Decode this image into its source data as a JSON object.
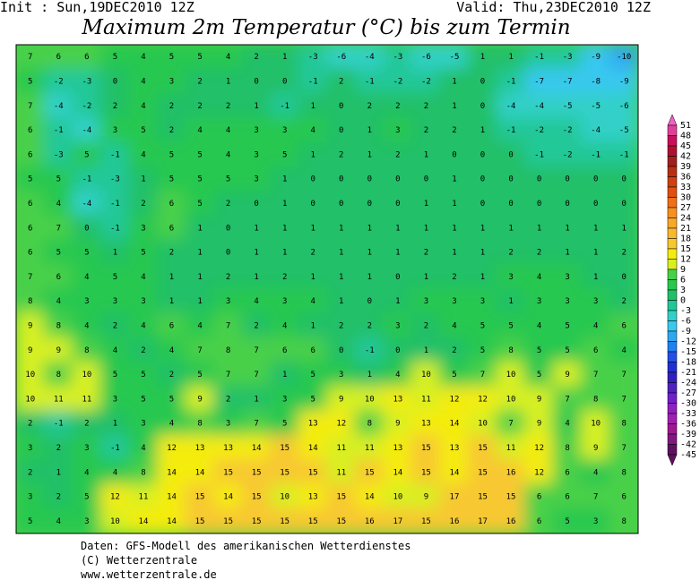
{
  "header": {
    "init": "Init : Sun,19DEC2010 12Z",
    "valid": "Valid: Thu,23DEC2010 12Z",
    "title": "Maximum 2m Temperatur (°C) bis zum Termin"
  },
  "map": {
    "grid": [
      [
        7,
        6,
        6,
        5,
        4,
        5,
        5,
        4,
        2,
        1,
        -3,
        -6,
        -4,
        -3,
        -6,
        -5,
        1,
        1,
        -1,
        -3,
        -9,
        -10
      ],
      [
        5,
        -2,
        -3,
        0,
        4,
        3,
        2,
        1,
        0,
        0,
        -1,
        2,
        -1,
        -2,
        -2,
        1,
        0,
        -1,
        -7,
        -7,
        -8,
        -9
      ],
      [
        7,
        -4,
        -2,
        2,
        4,
        2,
        2,
        2,
        1,
        -1,
        1,
        0,
        2,
        2,
        2,
        1,
        0,
        -4,
        -4,
        -5,
        -5,
        -6
      ],
      [
        6,
        -1,
        -4,
        3,
        5,
        2,
        4,
        4,
        3,
        3,
        4,
        0,
        1,
        3,
        2,
        2,
        1,
        -1,
        -2,
        -2,
        -4,
        -5
      ],
      [
        6,
        -3,
        5,
        -1,
        4,
        5,
        5,
        4,
        3,
        5,
        1,
        2,
        1,
        2,
        1,
        0,
        0,
        0,
        -1,
        -2,
        -1,
        -1
      ],
      [
        5,
        5,
        -1,
        -3,
        1,
        5,
        5,
        5,
        3,
        1,
        0,
        0,
        0,
        0,
        0,
        1,
        0,
        0,
        0,
        0,
        0,
        0
      ],
      [
        6,
        4,
        -4,
        -1,
        2,
        6,
        5,
        2,
        0,
        1,
        0,
        0,
        0,
        0,
        1,
        1,
        0,
        0,
        0,
        0,
        0,
        0
      ],
      [
        6,
        7,
        0,
        -1,
        3,
        6,
        1,
        0,
        1,
        1,
        1,
        1,
        1,
        1,
        1,
        1,
        1,
        1,
        1,
        1,
        1,
        1
      ],
      [
        6,
        5,
        5,
        1,
        5,
        2,
        1,
        0,
        1,
        1,
        2,
        1,
        1,
        1,
        2,
        1,
        1,
        2,
        2,
        1,
        1,
        2
      ],
      [
        7,
        6,
        4,
        5,
        4,
        1,
        1,
        2,
        1,
        2,
        1,
        1,
        1,
        0,
        1,
        2,
        1,
        3,
        4,
        3,
        1,
        0
      ],
      [
        8,
        4,
        3,
        3,
        3,
        1,
        1,
        3,
        4,
        3,
        4,
        1,
        0,
        1,
        3,
        3,
        3,
        1,
        3,
        3,
        3,
        2
      ],
      [
        9,
        8,
        4,
        2,
        4,
        6,
        4,
        7,
        2,
        4,
        1,
        2,
        2,
        3,
        2,
        4,
        5,
        5,
        4,
        5,
        4,
        6
      ],
      [
        9,
        9,
        8,
        4,
        2,
        4,
        7,
        8,
        7,
        6,
        6,
        0,
        -1,
        0,
        1,
        2,
        5,
        8,
        5,
        5,
        6,
        4
      ],
      [
        10,
        8,
        10,
        5,
        5,
        2,
        5,
        7,
        7,
        1,
        5,
        3,
        1,
        4,
        10,
        5,
        7,
        10,
        5,
        9,
        7,
        7
      ],
      [
        10,
        11,
        11,
        3,
        5,
        5,
        9,
        2,
        1,
        3,
        5,
        9,
        10,
        13,
        11,
        12,
        12,
        10,
        9,
        7,
        8,
        7
      ],
      [
        2,
        -1,
        2,
        1,
        3,
        4,
        8,
        3,
        7,
        5,
        13,
        12,
        8,
        9,
        13,
        14,
        10,
        7,
        9,
        4,
        10,
        8
      ],
      [
        3,
        2,
        3,
        -1,
        4,
        12,
        13,
        13,
        14,
        15,
        14,
        11,
        11,
        13,
        15,
        13,
        15,
        11,
        12,
        8,
        9,
        7
      ],
      [
        2,
        1,
        4,
        4,
        8,
        14,
        14,
        15,
        15,
        15,
        15,
        11,
        15,
        14,
        15,
        14,
        15,
        16,
        12,
        6,
        4,
        8
      ],
      [
        3,
        2,
        5,
        12,
        11,
        14,
        15,
        14,
        15,
        10,
        13,
        15,
        14,
        10,
        9,
        17,
        15,
        15,
        6,
        6,
        7,
        6
      ],
      [
        5,
        4,
        3,
        10,
        14,
        14,
        15,
        15,
        15,
        15,
        15,
        15,
        16,
        17,
        15,
        16,
        17,
        16,
        6,
        5,
        3,
        8
      ]
    ]
  },
  "colorbar": {
    "levels": [
      51,
      48,
      45,
      42,
      39,
      36,
      33,
      30,
      27,
      24,
      21,
      18,
      15,
      12,
      9,
      6,
      3,
      0,
      -3,
      -6,
      -9,
      -12,
      -15,
      -18,
      -21,
      -24,
      -27,
      -30,
      -33,
      -36,
      -39,
      -42,
      -45
    ],
    "colors": [
      "#f060c8",
      "#e0409a",
      "#c8105a",
      "#b01030",
      "#a02020",
      "#b83010",
      "#d04010",
      "#e05010",
      "#f07018",
      "#f89020",
      "#f8a828",
      "#f8b830",
      "#f8c830",
      "#f4ec10",
      "#d8f020",
      "#48d048",
      "#28c850",
      "#20c068",
      "#20c898",
      "#30d0c8",
      "#38c8f0",
      "#30a8f0",
      "#2080f0",
      "#2050e8",
      "#2030d0",
      "#3020c0",
      "#5020c0",
      "#7020c8",
      "#9020c0",
      "#a020b0",
      "#a01890",
      "#801880",
      "#601060"
    ]
  },
  "footer": {
    "line1": "Daten: GFS-Modell des amerikanischen Wetterdienstes",
    "line2": "(C) Wetterzentrale",
    "line3": "www.wetterzentrale.de"
  }
}
